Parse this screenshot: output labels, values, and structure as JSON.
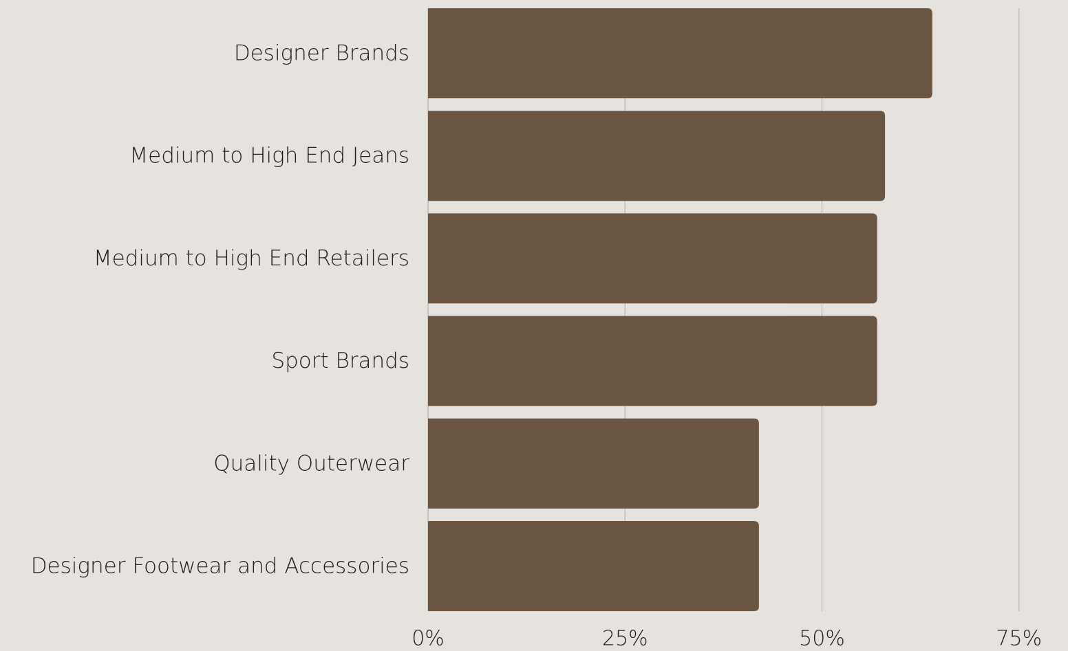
{
  "colors": {
    "background": "#e6e2dd",
    "bar": "#6b5644",
    "grid": "#b9b5b0",
    "text": "#1e1e1e"
  },
  "chart_data": {
    "type": "bar",
    "orientation": "horizontal",
    "title": "",
    "xlabel": "",
    "ylabel": "",
    "categories": [
      "Designer Brands",
      "Medium to High End Jeans",
      "Medium to High End Retailers",
      "Sport Brands",
      "Quality Outerwear",
      "Designer Footwear and Accessories"
    ],
    "values": [
      64,
      58,
      57,
      57,
      42,
      42
    ],
    "unit": "%",
    "xlim": [
      0,
      75
    ],
    "ticks": [
      0,
      25,
      50,
      75
    ],
    "tick_labels": [
      "0%",
      "25%",
      "50%",
      "75%"
    ],
    "grid": true,
    "legend": "none"
  }
}
